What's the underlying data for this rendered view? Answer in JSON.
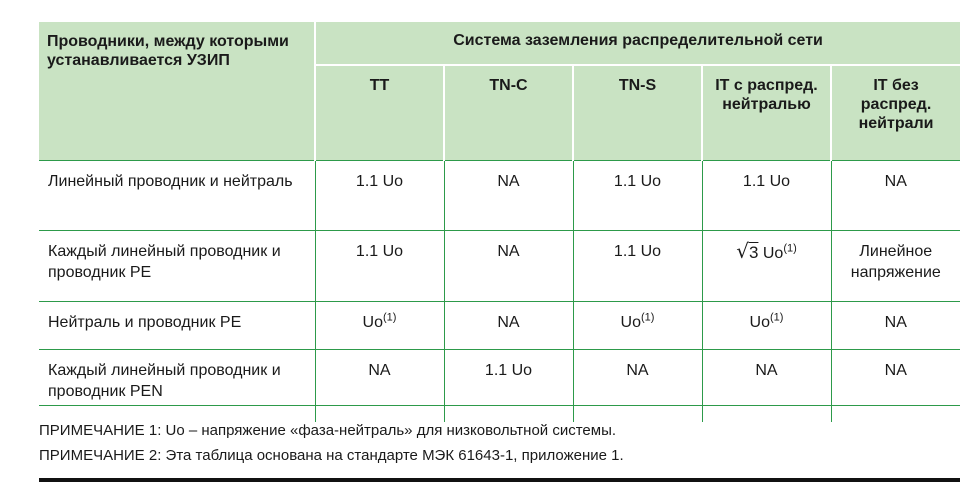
{
  "header": {
    "first_col": "Проводники, между которыми устанавливается УЗИП",
    "group": "Система заземления распределительной сети",
    "columns": [
      "TT",
      "TN-C",
      "TN-S",
      "IT с распред. нейтралью",
      "IT без распред. нейтрали"
    ]
  },
  "rows": [
    {
      "label": "Линейный проводник и нейтраль",
      "tt": "1.1 Uo",
      "tnc": "NA",
      "tns": "1.1 Uo",
      "it_with": "1.1 Uo",
      "it_without": "NA"
    },
    {
      "label": "Каждый линейный проводник и проводник PE",
      "tt": "1.1 Uo",
      "tnc": "NA",
      "tns": "1.1 Uo",
      "it_with_sqrt": "√",
      "it_with_sqrt_num": "3",
      "it_with_unit": "Uo",
      "it_with_sup": "(1)",
      "it_without": "Линейное напряжение"
    },
    {
      "label": "Нейтраль и проводник PE",
      "tt": "Uo",
      "tt_sup": "(1)",
      "tnc": "NA",
      "tns": "Uo",
      "tns_sup": "(1)",
      "it_with": "Uo",
      "it_with_sup": "(1)",
      "it_without": "NA"
    },
    {
      "label": "Каждый линейный проводник и проводник PEN",
      "tt": "NA",
      "tnc": "1.1 Uo",
      "tns": "NA",
      "it_with": "NA",
      "it_without": "NA"
    }
  ],
  "notes": [
    "ПРИМЕЧАНИЕ 1: Uo – напряжение «фаза-нейтраль» для низковольтной системы.",
    "ПРИМЕЧАНИЕ 2: Эта таблица основана на стандарте МЭК 61643-1, приложение 1."
  ],
  "colors": {
    "header_bg": "#c9e3c3",
    "rule_green": "#2d9a4a",
    "text": "#1a1a1a",
    "bottom_rule": "#111111"
  }
}
